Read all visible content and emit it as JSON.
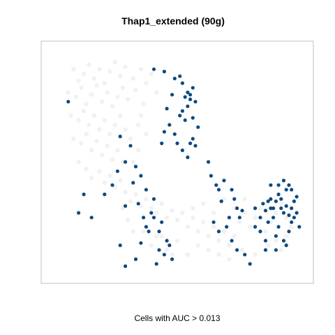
{
  "chart_data": {
    "type": "scatter",
    "title": "Thap1_extended (90g)",
    "xlabel": "Cells with AUC > 0.013",
    "ylabel": "",
    "xlim": [
      0,
      100
    ],
    "ylim": [
      0,
      100
    ],
    "grid": false,
    "legend": "none",
    "series": [
      {
        "color": "#efefef",
        "points": [
          [
            10,
            90
          ],
          [
            12,
            85
          ],
          [
            14,
            88
          ],
          [
            16,
            92
          ],
          [
            18,
            86
          ],
          [
            20,
            90
          ],
          [
            22,
            84
          ],
          [
            24,
            89
          ],
          [
            26,
            93
          ],
          [
            28,
            87
          ],
          [
            30,
            91
          ],
          [
            33,
            86
          ],
          [
            36,
            90
          ],
          [
            38,
            84
          ],
          [
            8,
            80
          ],
          [
            11,
            78
          ],
          [
            13,
            82
          ],
          [
            15,
            75
          ],
          [
            17,
            79
          ],
          [
            19,
            83
          ],
          [
            21,
            76
          ],
          [
            23,
            80
          ],
          [
            25,
            74
          ],
          [
            27,
            78
          ],
          [
            29,
            82
          ],
          [
            31,
            77
          ],
          [
            34,
            81
          ],
          [
            37,
            75
          ],
          [
            9,
            70
          ],
          [
            12,
            68
          ],
          [
            14,
            72
          ],
          [
            16,
            66
          ],
          [
            18,
            70
          ],
          [
            20,
            64
          ],
          [
            22,
            68
          ],
          [
            24,
            62
          ],
          [
            26,
            66
          ],
          [
            28,
            70
          ],
          [
            30,
            64
          ],
          [
            32,
            60
          ],
          [
            35,
            66
          ],
          [
            10,
            60
          ],
          [
            13,
            58
          ],
          [
            15,
            62
          ],
          [
            17,
            55
          ],
          [
            19,
            59
          ],
          [
            21,
            53
          ],
          [
            23,
            57
          ],
          [
            25,
            51
          ],
          [
            27,
            55
          ],
          [
            29,
            50
          ],
          [
            12,
            50
          ],
          [
            15,
            47
          ],
          [
            17,
            43
          ],
          [
            20,
            46
          ],
          [
            22,
            41
          ],
          [
            24,
            44
          ],
          [
            26,
            39
          ],
          [
            28,
            42
          ],
          [
            30,
            37
          ],
          [
            32,
            33
          ],
          [
            34,
            36
          ],
          [
            36,
            31
          ],
          [
            38,
            34
          ],
          [
            40,
            30
          ],
          [
            42,
            28
          ],
          [
            44,
            32
          ],
          [
            46,
            26
          ],
          [
            48,
            29
          ],
          [
            50,
            25
          ],
          [
            52,
            28
          ],
          [
            54,
            22
          ],
          [
            56,
            26
          ],
          [
            58,
            20
          ],
          [
            60,
            24
          ],
          [
            62,
            18
          ],
          [
            64,
            22
          ],
          [
            66,
            16
          ],
          [
            68,
            20
          ],
          [
            70,
            14
          ],
          [
            72,
            18
          ],
          [
            74,
            24
          ],
          [
            76,
            28
          ],
          [
            78,
            22
          ],
          [
            80,
            26
          ],
          [
            82,
            30
          ],
          [
            84,
            20
          ],
          [
            86,
            24
          ],
          [
            88,
            28
          ],
          [
            90,
            32
          ],
          [
            92,
            26
          ],
          [
            94,
            22
          ],
          [
            37,
            20
          ],
          [
            40,
            14
          ],
          [
            42,
            18
          ],
          [
            46,
            12
          ],
          [
            50,
            16
          ],
          [
            54,
            10
          ],
          [
            58,
            14
          ],
          [
            62,
            12
          ],
          [
            66,
            10
          ],
          [
            70,
            8
          ],
          [
            75,
            12
          ],
          [
            80,
            10
          ],
          [
            85,
            14
          ],
          [
            90,
            12
          ],
          [
            36,
            70
          ],
          [
            38,
            62
          ],
          [
            35,
            55
          ],
          [
            33,
            50
          ],
          [
            40,
            88
          ],
          [
            42,
            80
          ],
          [
            31,
            25
          ],
          [
            29,
            30
          ],
          [
            33,
            20
          ],
          [
            44,
            18
          ],
          [
            48,
            10
          ],
          [
            56,
            30
          ],
          [
            60,
            32
          ],
          [
            64,
            28
          ],
          [
            68,
            34
          ],
          [
            72,
            30
          ],
          [
            76,
            34
          ],
          [
            80,
            30
          ],
          [
            84,
            32
          ],
          [
            88,
            16
          ],
          [
            92,
            18
          ]
        ]
      },
      {
        "color": "#0e4a80",
        "points": [
          [
            8,
            76
          ],
          [
            41,
            90
          ],
          [
            45,
            89
          ],
          [
            49,
            86
          ],
          [
            51,
            87
          ],
          [
            52,
            84
          ],
          [
            54,
            80
          ],
          [
            55,
            79
          ],
          [
            56,
            82
          ],
          [
            53,
            78
          ],
          [
            57,
            76
          ],
          [
            54,
            74
          ],
          [
            55,
            77
          ],
          [
            52,
            72
          ],
          [
            51,
            70
          ],
          [
            53,
            68
          ],
          [
            56,
            69
          ],
          [
            58,
            65
          ],
          [
            48,
            79
          ],
          [
            46,
            73
          ],
          [
            49,
            62
          ],
          [
            47,
            66
          ],
          [
            50,
            58
          ],
          [
            52,
            55
          ],
          [
            55,
            58
          ],
          [
            57,
            57
          ],
          [
            54,
            52
          ],
          [
            56,
            60
          ],
          [
            45,
            63
          ],
          [
            44,
            58
          ],
          [
            28,
            61
          ],
          [
            32,
            57
          ],
          [
            30,
            50
          ],
          [
            27,
            46
          ],
          [
            34,
            48
          ],
          [
            36,
            44
          ],
          [
            33,
            41
          ],
          [
            25,
            40
          ],
          [
            22,
            36
          ],
          [
            30,
            31
          ],
          [
            35,
            32
          ],
          [
            38,
            38
          ],
          [
            40,
            28
          ],
          [
            41,
            34
          ],
          [
            37,
            26
          ],
          [
            38,
            22
          ],
          [
            43,
            20
          ],
          [
            44,
            24
          ],
          [
            46,
            16
          ],
          [
            43,
            12
          ],
          [
            45,
            10
          ],
          [
            47,
            14
          ],
          [
            48,
            8
          ],
          [
            39,
            20
          ],
          [
            42,
            6
          ],
          [
            41,
            26
          ],
          [
            36,
            15
          ],
          [
            28,
            14
          ],
          [
            30,
            5
          ],
          [
            34,
            8
          ],
          [
            17,
            26
          ],
          [
            14,
            36
          ],
          [
            12,
            28
          ],
          [
            62,
            50
          ],
          [
            63,
            44
          ],
          [
            65,
            40
          ],
          [
            66,
            38
          ],
          [
            67,
            33
          ],
          [
            68,
            42
          ],
          [
            71,
            38
          ],
          [
            72,
            34
          ],
          [
            73,
            30
          ],
          [
            74,
            26
          ],
          [
            75,
            29
          ],
          [
            70,
            26
          ],
          [
            64,
            24
          ],
          [
            66,
            20
          ],
          [
            69,
            22
          ],
          [
            71,
            16
          ],
          [
            73,
            12
          ],
          [
            76,
            10
          ],
          [
            78,
            6
          ],
          [
            80,
            22
          ],
          [
            83,
            32
          ],
          [
            84,
            29
          ],
          [
            85,
            33
          ],
          [
            86,
            34
          ],
          [
            87,
            30
          ],
          [
            88,
            33
          ],
          [
            89,
            36
          ],
          [
            90,
            30
          ],
          [
            91,
            28
          ],
          [
            92,
            31
          ],
          [
            93,
            27
          ],
          [
            94,
            30
          ],
          [
            95,
            33
          ],
          [
            96,
            35
          ],
          [
            87,
            26
          ],
          [
            89,
            22
          ],
          [
            88,
            18
          ],
          [
            91,
            16
          ],
          [
            93,
            20
          ],
          [
            94,
            24
          ],
          [
            82,
            20
          ],
          [
            84,
            16
          ],
          [
            85,
            24
          ],
          [
            86,
            40
          ],
          [
            89,
            40
          ],
          [
            91,
            42
          ],
          [
            92,
            38
          ],
          [
            94,
            38
          ],
          [
            90,
            34
          ],
          [
            86,
            30
          ],
          [
            95,
            26
          ],
          [
            97,
            22
          ],
          [
            96,
            28
          ],
          [
            92,
            14
          ],
          [
            84,
            12
          ],
          [
            88,
            12
          ],
          [
            93,
            40
          ],
          [
            80,
            30
          ],
          [
            82,
            26
          ]
        ]
      }
    ]
  }
}
